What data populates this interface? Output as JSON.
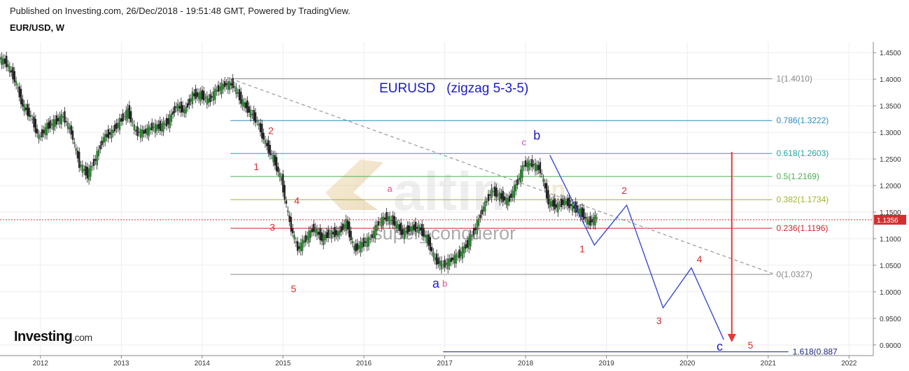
{
  "header": {
    "published": "Published on Investing.com, 26/Dec/2018 - 19:51:48 GMT, Powered by TradingView.",
    "symbol": "EUR/USD, W"
  },
  "logo": {
    "main": "Investing",
    "suffix": ".com"
  },
  "watermark": {
    "brand": "altin",
    "brand_suffix": "in",
    "author": "super_conqueror"
  },
  "chart_data": {
    "type": "line",
    "title": "EURUSD   (zigzag 5-3-5)",
    "x_axis": {
      "tick_labels": [
        "2012",
        "2013",
        "2014",
        "2015",
        "2016",
        "2017",
        "2018",
        "2019",
        "2020",
        "2021",
        "2022"
      ],
      "range": [
        2011.5,
        2022.3
      ]
    },
    "y_axis": {
      "tick_labels": [
        "1.4500",
        "1.4000",
        "1.3500",
        "1.3000",
        "1.2500",
        "1.2000",
        "1.1500",
        "1.1000",
        "1.0500",
        "1.0000",
        "0.9500",
        "0.9000"
      ],
      "range": [
        0.88,
        1.47
      ],
      "current_price": {
        "label": "1.1356",
        "value": 1.1356,
        "color": "#d32f2f"
      }
    },
    "grid": true,
    "price_series": {
      "name": "EUR/USD weekly",
      "x": [
        2011.5,
        2011.6,
        2011.7,
        2011.8,
        2011.9,
        2012.0,
        2012.1,
        2012.2,
        2012.3,
        2012.4,
        2012.5,
        2012.6,
        2012.7,
        2012.8,
        2012.9,
        2013.0,
        2013.1,
        2013.2,
        2013.3,
        2013.4,
        2013.5,
        2013.6,
        2013.7,
        2013.8,
        2013.9,
        2014.0,
        2014.1,
        2014.2,
        2014.3,
        2014.4,
        2014.5,
        2014.6,
        2014.7,
        2014.8,
        2014.9,
        2015.0,
        2015.1,
        2015.2,
        2015.3,
        2015.4,
        2015.5,
        2015.6,
        2015.7,
        2015.8,
        2015.9,
        2016.0,
        2016.1,
        2016.2,
        2016.3,
        2016.4,
        2016.5,
        2016.6,
        2016.7,
        2016.8,
        2016.9,
        2017.0,
        2017.1,
        2017.2,
        2017.3,
        2017.4,
        2017.5,
        2017.6,
        2017.7,
        2017.8,
        2017.9,
        2018.0,
        2018.1,
        2018.2,
        2018.3,
        2018.4,
        2018.5,
        2018.6,
        2018.7,
        2018.8,
        2018.9
      ],
      "y": [
        1.44,
        1.43,
        1.4,
        1.35,
        1.33,
        1.29,
        1.31,
        1.32,
        1.33,
        1.3,
        1.24,
        1.22,
        1.25,
        1.29,
        1.3,
        1.32,
        1.34,
        1.3,
        1.3,
        1.31,
        1.31,
        1.32,
        1.35,
        1.34,
        1.37,
        1.37,
        1.36,
        1.38,
        1.39,
        1.39,
        1.36,
        1.34,
        1.32,
        1.28,
        1.25,
        1.21,
        1.13,
        1.08,
        1.1,
        1.12,
        1.1,
        1.11,
        1.11,
        1.13,
        1.08,
        1.09,
        1.1,
        1.13,
        1.14,
        1.13,
        1.11,
        1.12,
        1.12,
        1.1,
        1.06,
        1.05,
        1.06,
        1.07,
        1.09,
        1.12,
        1.16,
        1.19,
        1.18,
        1.17,
        1.2,
        1.24,
        1.24,
        1.23,
        1.17,
        1.16,
        1.17,
        1.16,
        1.15,
        1.13,
        1.14
      ]
    },
    "fib_levels": [
      {
        "label": "1(1.4010)",
        "value": 1.401,
        "color": "#888888"
      },
      {
        "label": "0.786(1.3222)",
        "value": 1.3222,
        "color": "#2b8cbe"
      },
      {
        "label": "0.618(1.2603)",
        "value": 1.2603,
        "color": "#20a39e"
      },
      {
        "label": "0.5(1.2169)",
        "value": 1.2169,
        "color": "#4caf50"
      },
      {
        "label": "0.382(1.1734)",
        "value": 1.1734,
        "color": "#9bb52e"
      },
      {
        "label": "0.236(1.1196)",
        "value": 1.1196,
        "color": "#c62828"
      },
      {
        "label": "0(1.0327)",
        "value": 1.0327,
        "color": "#888888"
      },
      {
        "label": "1.618(0.887",
        "value": 0.887,
        "color": "#1a237e"
      }
    ],
    "projection": {
      "name": "zigzag projection",
      "color": "#3b4ccf",
      "x": [
        2018.3,
        2018.85,
        2019.25,
        2019.7,
        2020.05,
        2020.45
      ],
      "y": [
        1.257,
        1.088,
        1.163,
        0.97,
        1.045,
        0.91
      ]
    },
    "trendline": {
      "x": [
        2014.35,
        2021.1
      ],
      "y": [
        1.401,
        1.032
      ],
      "color": "#999999"
    },
    "target_arrow": {
      "x": 2020.55,
      "from": 1.263,
      "to": 0.905,
      "color": "#e53935"
    },
    "wave_labels": [
      {
        "text": "2",
        "x": 2014.85,
        "y": 1.297,
        "color": "#d32f2f",
        "size": 14
      },
      {
        "text": "1",
        "x": 2014.67,
        "y": 1.229,
        "color": "#d32f2f",
        "size": 14
      },
      {
        "text": "4",
        "x": 2015.17,
        "y": 1.165,
        "color": "#d32f2f",
        "size": 14
      },
      {
        "text": "3",
        "x": 2014.87,
        "y": 1.115,
        "color": "#d32f2f",
        "size": 14
      },
      {
        "text": "5",
        "x": 2015.13,
        "y": 0.999,
        "color": "#d32f2f",
        "size": 14
      },
      {
        "text": "a",
        "x": 2016.32,
        "y": 1.188,
        "color": "#e84c8a",
        "size": 13
      },
      {
        "text": "a",
        "x": 2016.89,
        "y": 1.008,
        "color": "#1a1acc",
        "size": 18
      },
      {
        "text": "b",
        "x": 2017.0,
        "y": 1.01,
        "color": "#e84c8a",
        "size": 13
      },
      {
        "text": "c",
        "x": 2017.98,
        "y": 1.276,
        "color": "#cc44cc",
        "size": 13
      },
      {
        "text": "b",
        "x": 2018.14,
        "y": 1.286,
        "color": "#1a1acc",
        "size": 18
      },
      {
        "text": "2",
        "x": 2019.22,
        "y": 1.184,
        "color": "#d32f2f",
        "size": 14
      },
      {
        "text": "1",
        "x": 2018.7,
        "y": 1.074,
        "color": "#d32f2f",
        "size": 14
      },
      {
        "text": "4",
        "x": 2020.15,
        "y": 1.055,
        "color": "#d32f2f",
        "size": 14
      },
      {
        "text": "3",
        "x": 2019.65,
        "y": 0.939,
        "color": "#d32f2f",
        "size": 14
      },
      {
        "text": "c",
        "x": 2020.4,
        "y": 0.889,
        "color": "#1a1acc",
        "size": 18
      },
      {
        "text": "5",
        "x": 2020.78,
        "y": 0.893,
        "color": "#d32f2f",
        "size": 14
      }
    ]
  }
}
